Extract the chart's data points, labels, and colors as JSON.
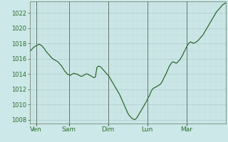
{
  "background_color": "#cce8e8",
  "plot_bg_color": "#cce8e8",
  "line_color": "#1a5c1a",
  "line_width": 0.8,
  "ylim": [
    1007.5,
    1023.5
  ],
  "yticks": [
    1008,
    1010,
    1012,
    1014,
    1016,
    1018,
    1020,
    1022
  ],
  "ylabel_fontsize": 6.0,
  "xlabel_fontsize": 6.5,
  "tick_color": "#2d6e2d",
  "grid_color_major": "#b0cccc",
  "grid_color_minor": "#c0d8d8",
  "day_labels": [
    "Ven",
    "Sam",
    "Dim",
    "Lun",
    "Mar"
  ],
  "total_hours": 120,
  "pressure_data": [
    1017.0,
    1017.1,
    1017.3,
    1017.5,
    1017.6,
    1017.7,
    1017.8,
    1017.9,
    1017.8,
    1017.7,
    1017.5,
    1017.3,
    1017.0,
    1016.8,
    1016.6,
    1016.4,
    1016.2,
    1016.0,
    1015.9,
    1015.8,
    1015.7,
    1015.6,
    1015.4,
    1015.2,
    1015.0,
    1014.7,
    1014.4,
    1014.2,
    1014.0,
    1013.9,
    1013.8,
    1013.9,
    1014.0,
    1014.1,
    1014.0,
    1014.0,
    1013.9,
    1013.8,
    1013.7,
    1013.7,
    1013.8,
    1013.9,
    1014.0,
    1014.0,
    1013.9,
    1013.8,
    1013.7,
    1013.6,
    1013.5,
    1013.6,
    1014.8,
    1015.0,
    1015.0,
    1014.9,
    1014.7,
    1014.5,
    1014.3,
    1014.1,
    1013.9,
    1013.7,
    1013.4,
    1013.1,
    1012.8,
    1012.5,
    1012.2,
    1011.9,
    1011.6,
    1011.3,
    1010.9,
    1010.5,
    1010.1,
    1009.7,
    1009.3,
    1008.9,
    1008.6,
    1008.4,
    1008.2,
    1008.1,
    1008.0,
    1008.1,
    1008.3,
    1008.6,
    1008.9,
    1009.2,
    1009.5,
    1009.8,
    1010.1,
    1010.4,
    1010.8,
    1011.1,
    1011.5,
    1011.9,
    1012.1,
    1012.2,
    1012.3,
    1012.4,
    1012.5,
    1012.6,
    1012.8,
    1013.1,
    1013.5,
    1013.8,
    1014.2,
    1014.6,
    1015.0,
    1015.3,
    1015.5,
    1015.6,
    1015.5,
    1015.4,
    1015.5,
    1015.7,
    1015.9,
    1016.2,
    1016.5,
    1016.9,
    1017.2,
    1017.6,
    1017.9,
    1018.1,
    1018.2,
    1018.1,
    1018.0,
    1018.1,
    1018.2,
    1018.3,
    1018.5,
    1018.7,
    1018.9,
    1019.1,
    1019.4,
    1019.7,
    1020.0,
    1020.3,
    1020.6,
    1020.9,
    1021.2,
    1021.5,
    1021.8,
    1022.1,
    1022.3,
    1022.5,
    1022.7,
    1022.9,
    1023.1,
    1023.2,
    1023.3
  ]
}
